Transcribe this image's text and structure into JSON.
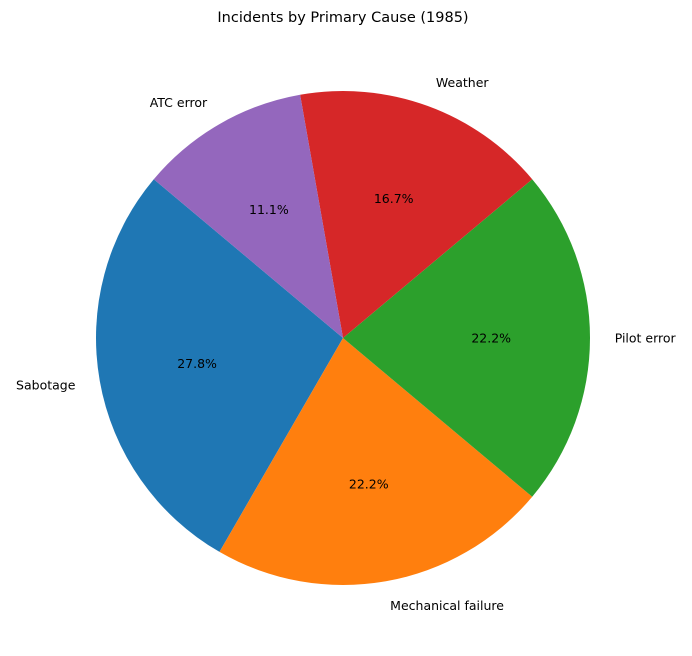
{
  "chart_data": {
    "type": "pie",
    "title": "Incidents by Primary Cause (1985)",
    "categories": [
      "Sabotage",
      "Mechanical failure",
      "Pilot error",
      "Weather",
      "ATC error"
    ],
    "values": [
      5,
      4,
      4,
      3,
      2
    ],
    "percent_labels": [
      "27.8%",
      "22.2%",
      "22.2%",
      "16.7%",
      "11.1%"
    ],
    "colors": [
      "#1f77b4",
      "#ff7f0e",
      "#2ca02c",
      "#d62728",
      "#9467bd"
    ],
    "start_angle_deg": 140,
    "direction": "counterclockwise",
    "legend": false
  }
}
